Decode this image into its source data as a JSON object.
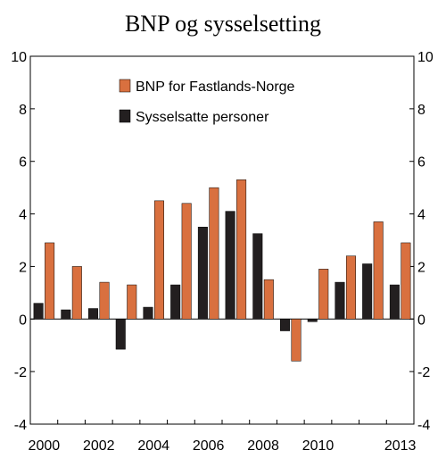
{
  "chart_data": {
    "type": "bar",
    "title": "BNP og sysselsetting",
    "categories": [
      "2000",
      "2001",
      "2002",
      "2003",
      "2004",
      "2005",
      "2006",
      "2007",
      "2008",
      "2009",
      "2010",
      "2011",
      "2012",
      "2013"
    ],
    "x_tick_labels": [
      "2000",
      "2002",
      "2004",
      "2006",
      "2008",
      "2010",
      "2013"
    ],
    "series": [
      {
        "name": "Sysselsatte personer",
        "color": "#231f20",
        "values": [
          0.6,
          0.35,
          0.4,
          -1.15,
          0.45,
          1.3,
          3.5,
          4.1,
          3.25,
          -0.45,
          -0.1,
          1.4,
          2.1,
          1.3
        ]
      },
      {
        "name": "BNP for Fastlands-Norge",
        "color": "#d9703f",
        "values": [
          2.9,
          2.0,
          1.4,
          1.3,
          4.5,
          4.4,
          5.0,
          5.3,
          1.5,
          -1.6,
          1.9,
          2.4,
          3.7,
          2.9
        ]
      }
    ],
    "ylim": [
      -4,
      10
    ],
    "y_ticks": [
      -4,
      -2,
      0,
      2,
      4,
      6,
      8,
      10
    ],
    "legend_position": "top-left",
    "grid": false,
    "xlabel": "",
    "ylabel": ""
  }
}
